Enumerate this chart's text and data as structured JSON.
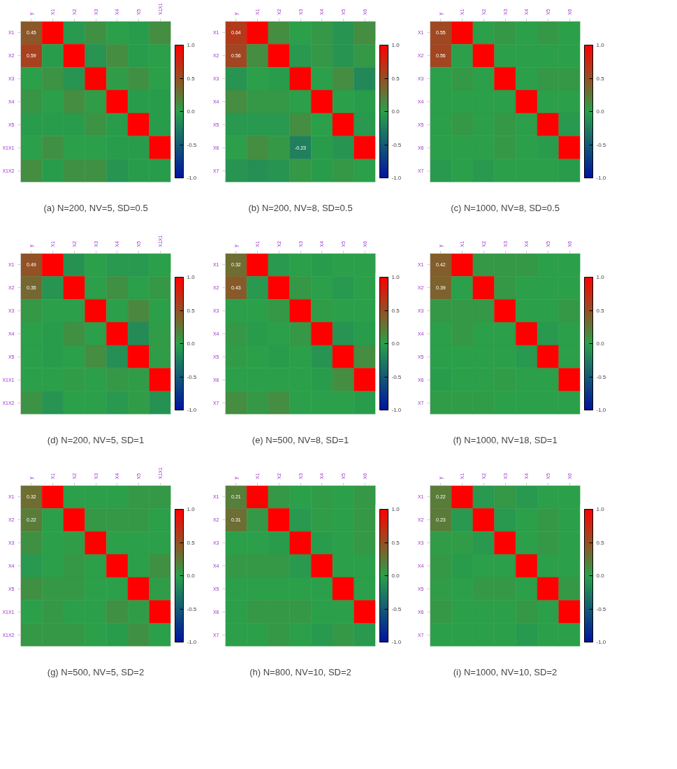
{
  "chart_data": [
    {
      "type": "heatmap",
      "title": "(a) N=200, NV=5, SD=0.5",
      "categories": [
        "y",
        "X1",
        "X2",
        "X3",
        "X4",
        "X5",
        "X1X1"
      ],
      "y_categories": [
        "X1",
        "X2",
        "X3",
        "X4",
        "X5",
        "X1X1",
        "X1X2"
      ],
      "cells": [
        [
          0.45,
          1,
          -0.05,
          0.1,
          0,
          -0.03,
          0.12
        ],
        [
          0.59,
          -0.03,
          1,
          -0.08,
          0.12,
          -0.03,
          0
        ],
        [
          0,
          0.08,
          -0.08,
          1,
          0.03,
          0.1,
          0
        ],
        [
          0.07,
          0,
          0.12,
          0.03,
          1,
          -0.03,
          -0.03
        ],
        [
          -0.03,
          -0.03,
          -0.03,
          0.08,
          -0.03,
          1,
          -0.03
        ],
        [
          0,
          0.1,
          0,
          0,
          -0.03,
          -0.03,
          1
        ],
        [
          0.12,
          -0.03,
          0.1,
          0.1,
          -0.08,
          -0.03,
          -0.03
        ]
      ],
      "cell_labels": [
        [
          "0.45",
          null,
          null,
          null,
          null,
          null,
          null
        ],
        [
          "0.59",
          null,
          null,
          null,
          null,
          null,
          null
        ],
        [
          null,
          null,
          null,
          null,
          null,
          null,
          null
        ],
        [
          null,
          null,
          null,
          null,
          null,
          null,
          null
        ],
        [
          null,
          null,
          null,
          null,
          null,
          null,
          null
        ],
        [
          null,
          null,
          null,
          null,
          null,
          null,
          null
        ],
        [
          null,
          null,
          null,
          null,
          null,
          null,
          null
        ]
      ],
      "clim": [
        -1,
        1
      ],
      "cticks": [
        {
          "value": -1,
          "label": "-1.0"
        },
        {
          "value": -0.5,
          "label": "-0.5"
        },
        {
          "value": 0,
          "label": "0.0"
        },
        {
          "value": 0.5,
          "label": "0.5"
        },
        {
          "value": 1,
          "label": "1.0"
        }
      ]
    },
    {
      "type": "heatmap",
      "title": "(b) N=200, NV=8, SD=0.5",
      "categories": [
        "y",
        "X1",
        "X2",
        "X3",
        "X4",
        "X5",
        "X6"
      ],
      "y_categories": [
        "X1",
        "X2",
        "X3",
        "X4",
        "X5",
        "X6",
        "X7"
      ],
      "cells": [
        [
          0.64,
          1,
          0.12,
          0,
          0.05,
          -0.08,
          0.12
        ],
        [
          0.56,
          0.12,
          1,
          -0.05,
          0.05,
          -0.08,
          0.05
        ],
        [
          -0.08,
          0,
          -0.03,
          1,
          0,
          0.12,
          -0.17
        ],
        [
          0.12,
          0.05,
          0.05,
          0,
          1,
          0,
          -0.03
        ],
        [
          -0.05,
          -0.05,
          -0.05,
          0.12,
          0,
          1,
          -0.05
        ],
        [
          0,
          0.12,
          0.05,
          -0.23,
          -0.03,
          -0.08,
          1
        ],
        [
          -0.08,
          -0.12,
          -0.08,
          0.05,
          -0.03,
          0.05,
          0
        ]
      ],
      "cell_labels": [
        [
          "0.64",
          null,
          null,
          null,
          null,
          null,
          null
        ],
        [
          "0.56",
          null,
          null,
          null,
          null,
          null,
          null
        ],
        [
          null,
          null,
          null,
          null,
          null,
          null,
          null
        ],
        [
          null,
          null,
          null,
          null,
          null,
          null,
          null
        ],
        [
          null,
          null,
          null,
          null,
          null,
          null,
          null
        ],
        [
          null,
          null,
          null,
          "-0.23",
          null,
          null,
          null
        ],
        [
          null,
          null,
          null,
          null,
          null,
          null,
          null
        ]
      ],
      "clim": [
        -1,
        1
      ],
      "cticks": [
        {
          "value": -1,
          "label": "-1.0"
        },
        {
          "value": -0.5,
          "label": "-0.5"
        },
        {
          "value": 0,
          "label": "0.0"
        },
        {
          "value": 0.5,
          "label": "0.5"
        },
        {
          "value": 1,
          "label": "1.0"
        }
      ]
    },
    {
      "type": "heatmap",
      "title": "(c) N=1000, NV=8, SD=0.5",
      "categories": [
        "y",
        "X1",
        "X2",
        "X3",
        "X4",
        "X5",
        "X6"
      ],
      "y_categories": [
        "X1",
        "X2",
        "X3",
        "X4",
        "X5",
        "X6",
        "X7"
      ],
      "cells": [
        [
          0.55,
          1,
          0,
          0.05,
          0,
          0.05,
          0
        ],
        [
          0.56,
          0,
          1,
          0,
          0,
          0,
          0
        ],
        [
          0,
          0.05,
          0,
          1,
          0,
          0.05,
          0.05
        ],
        [
          0,
          0,
          0,
          0,
          1,
          0,
          0
        ],
        [
          0,
          0.05,
          0,
          0.05,
          0,
          1,
          -0.05
        ],
        [
          0,
          0,
          0,
          0.05,
          0,
          -0.03,
          1
        ],
        [
          -0.05,
          0,
          -0.05,
          0,
          0,
          0,
          -0.03
        ]
      ],
      "cell_labels": [
        [
          "0.55",
          null,
          null,
          null,
          null,
          null,
          null
        ],
        [
          "0.56",
          null,
          null,
          null,
          null,
          null,
          null
        ],
        [
          null,
          null,
          null,
          null,
          null,
          null,
          null
        ],
        [
          null,
          null,
          null,
          null,
          null,
          null,
          null
        ],
        [
          null,
          null,
          null,
          null,
          null,
          null,
          null
        ],
        [
          null,
          null,
          null,
          null,
          null,
          null,
          null
        ],
        [
          null,
          null,
          null,
          null,
          null,
          null,
          null
        ]
      ],
      "clim": [
        -1,
        1
      ],
      "cticks": [
        {
          "value": -1,
          "label": "-1.0"
        },
        {
          "value": -0.5,
          "label": "-0.5"
        },
        {
          "value": 0,
          "label": "0.0"
        },
        {
          "value": 0.5,
          "label": "0.5"
        },
        {
          "value": 1,
          "label": "1.0"
        }
      ]
    },
    {
      "type": "heatmap",
      "title": "(d) N=200, NV=5, SD=1",
      "categories": [
        "y",
        "X1",
        "X2",
        "X3",
        "X4",
        "X5",
        "X1X1"
      ],
      "y_categories": [
        "X1",
        "X2",
        "X3",
        "X4",
        "X5",
        "X1X1",
        "X1X2"
      ],
      "cells": [
        [
          0.49,
          1,
          -0.1,
          0,
          -0.05,
          -0.05,
          0
        ],
        [
          0.35,
          -0.08,
          1,
          0,
          0.1,
          0,
          0.05
        ],
        [
          0.05,
          0,
          0,
          1,
          0,
          0.15,
          0
        ],
        [
          0,
          -0.03,
          0.1,
          0,
          1,
          -0.15,
          0.03
        ],
        [
          0,
          -0.03,
          0,
          0.12,
          -0.12,
          1,
          0.03
        ],
        [
          0,
          0,
          0.03,
          0,
          0.05,
          0.03,
          1
        ],
        [
          0.08,
          -0.08,
          0,
          0,
          -0.05,
          0.03,
          -0.1
        ]
      ],
      "cell_labels": [
        [
          "0.49",
          null,
          null,
          null,
          null,
          null,
          null
        ],
        [
          "0.35",
          null,
          null,
          null,
          null,
          null,
          null
        ],
        [
          null,
          null,
          null,
          null,
          null,
          null,
          null
        ],
        [
          null,
          null,
          null,
          null,
          null,
          null,
          null
        ],
        [
          null,
          null,
          null,
          null,
          null,
          null,
          null
        ],
        [
          null,
          null,
          null,
          null,
          null,
          null,
          null
        ],
        [
          null,
          null,
          null,
          null,
          null,
          null,
          null
        ]
      ],
      "clim": [
        -1,
        1
      ],
      "cticks": [
        {
          "value": -1,
          "label": "-1.0"
        },
        {
          "value": -0.5,
          "label": "-0.5"
        },
        {
          "value": 0,
          "label": "0.0"
        },
        {
          "value": 0.5,
          "label": "0.5"
        },
        {
          "value": 1,
          "label": "1.0"
        }
      ]
    },
    {
      "type": "heatmap",
      "title": "(e) N=500, NV=8, SD=1",
      "categories": [
        "y",
        "X1",
        "X2",
        "X3",
        "X4",
        "X5",
        "X6"
      ],
      "y_categories": [
        "X1",
        "X2",
        "X3",
        "X4",
        "X5",
        "X6",
        "X7"
      ],
      "cells": [
        [
          0.32,
          1,
          -0.05,
          0,
          -0.03,
          0,
          0
        ],
        [
          0.43,
          -0.05,
          1,
          0.05,
          0,
          -0.05,
          0
        ],
        [
          0,
          0,
          0.05,
          1,
          0.03,
          0,
          0
        ],
        [
          0.05,
          -0.03,
          0,
          0.05,
          1,
          -0.08,
          -0.03
        ],
        [
          0.03,
          0,
          -0.03,
          0,
          -0.08,
          1,
          0.12
        ],
        [
          0,
          0,
          0,
          0,
          -0.03,
          0.12,
          1
        ],
        [
          0.12,
          0.05,
          0.12,
          0,
          0,
          0,
          -0.03
        ]
      ],
      "cell_labels": [
        [
          "0.32",
          null,
          null,
          null,
          null,
          null,
          null
        ],
        [
          "0.43",
          null,
          null,
          null,
          null,
          null,
          null
        ],
        [
          null,
          null,
          null,
          null,
          null,
          null,
          null
        ],
        [
          null,
          null,
          null,
          null,
          null,
          null,
          null
        ],
        [
          null,
          null,
          null,
          null,
          null,
          null,
          null
        ],
        [
          null,
          null,
          null,
          null,
          null,
          null,
          null
        ],
        [
          null,
          null,
          null,
          null,
          null,
          null,
          null
        ]
      ],
      "clim": [
        -1,
        1
      ],
      "cticks": [
        {
          "value": -1,
          "label": "-1.0"
        },
        {
          "value": -0.5,
          "label": "-0.5"
        },
        {
          "value": 0,
          "label": "0.0"
        },
        {
          "value": 0.5,
          "label": "0.5"
        },
        {
          "value": 1,
          "label": "1.0"
        }
      ]
    },
    {
      "type": "heatmap",
      "title": "(f) N=1000, NV=18, SD=1",
      "categories": [
        "y",
        "X1",
        "X2",
        "X3",
        "X4",
        "X5",
        "X6"
      ],
      "y_categories": [
        "X1",
        "X2",
        "X3",
        "X4",
        "X5",
        "X6",
        "X7"
      ],
      "cells": [
        [
          0.42,
          1,
          0.05,
          0.05,
          0.05,
          0,
          0
        ],
        [
          0.39,
          0,
          1,
          0.05,
          0,
          0,
          0
        ],
        [
          0.05,
          0.05,
          0.05,
          1,
          0,
          0,
          0.05
        ],
        [
          0,
          0.05,
          0,
          0,
          1,
          -0.05,
          0
        ],
        [
          0,
          0,
          0,
          0,
          -0.05,
          1,
          0
        ],
        [
          -0.03,
          0,
          0,
          0.03,
          0,
          0,
          1
        ],
        [
          0.03,
          0.03,
          0.03,
          0,
          0,
          0,
          0
        ]
      ],
      "cell_labels": [
        [
          "0.42",
          null,
          null,
          null,
          null,
          null,
          null
        ],
        [
          "0.39",
          null,
          null,
          null,
          null,
          null,
          null
        ],
        [
          null,
          null,
          null,
          null,
          null,
          null,
          null
        ],
        [
          null,
          null,
          null,
          null,
          null,
          null,
          null
        ],
        [
          null,
          null,
          null,
          null,
          null,
          null,
          null
        ],
        [
          null,
          null,
          null,
          null,
          null,
          null,
          null
        ],
        [
          null,
          null,
          null,
          null,
          null,
          null,
          null
        ]
      ],
      "clim": [
        -1,
        1
      ],
      "cticks": [
        {
          "value": -1,
          "label": "-1.0"
        },
        {
          "value": -0.5,
          "label": "-0.5"
        },
        {
          "value": 0,
          "label": "0.0"
        },
        {
          "value": 0.5,
          "label": "0.5"
        },
        {
          "value": 1,
          "label": "1.0"
        }
      ]
    },
    {
      "type": "heatmap",
      "title": "(g) N=500, NV=5, SD=2",
      "categories": [
        "y",
        "X1",
        "X2",
        "X3",
        "X4",
        "X5",
        "X1X1"
      ],
      "y_categories": [
        "X1",
        "X2",
        "X3",
        "X4",
        "X5",
        "X1X1",
        "X1X2"
      ],
      "cells": [
        [
          0.32,
          1,
          0,
          0,
          0,
          0.05,
          0.05
        ],
        [
          0.22,
          0,
          1,
          0.05,
          0.05,
          0.05,
          0
        ],
        [
          0.1,
          0,
          0.03,
          1,
          0,
          0,
          0
        ],
        [
          -0.05,
          0,
          0.05,
          0,
          1,
          0,
          0.1
        ],
        [
          0.1,
          0.05,
          0.05,
          0,
          0,
          1,
          0.03
        ],
        [
          0,
          0.05,
          0,
          0,
          0.1,
          0.03,
          1
        ],
        [
          0.05,
          0.05,
          0.05,
          0,
          -0.03,
          0.1,
          0
        ]
      ],
      "cell_labels": [
        [
          "0.32",
          null,
          null,
          null,
          null,
          null,
          null
        ],
        [
          "0.22",
          null,
          null,
          null,
          null,
          null,
          null
        ],
        [
          null,
          null,
          null,
          null,
          null,
          null,
          null
        ],
        [
          null,
          null,
          null,
          null,
          null,
          null,
          null
        ],
        [
          null,
          null,
          null,
          null,
          null,
          null,
          null
        ],
        [
          null,
          null,
          null,
          null,
          null,
          null,
          null
        ],
        [
          null,
          null,
          null,
          null,
          null,
          null,
          null
        ]
      ],
      "clim": [
        -1,
        1
      ],
      "cticks": [
        {
          "value": -1,
          "label": "-1.0"
        },
        {
          "value": -0.5,
          "label": "-0.5"
        },
        {
          "value": 0,
          "label": "0.0"
        },
        {
          "value": 0.5,
          "label": "0.5"
        },
        {
          "value": 1,
          "label": "1.0"
        }
      ]
    },
    {
      "type": "heatmap",
      "title": "(h) N=800, NV=10, SD=2",
      "categories": [
        "y",
        "X1",
        "X2",
        "X3",
        "X4",
        "X5",
        "X6"
      ],
      "y_categories": [
        "X1",
        "X2",
        "X3",
        "X4",
        "X5",
        "X6",
        "X7"
      ],
      "cells": [
        [
          0.21,
          1,
          0.05,
          0,
          0.03,
          0,
          0.05
        ],
        [
          0.31,
          0.05,
          1,
          -0.05,
          0.03,
          0,
          0.05
        ],
        [
          0,
          0,
          -0.03,
          1,
          -0.03,
          0,
          0.05
        ],
        [
          0.05,
          0.05,
          0.05,
          -0.05,
          1,
          0,
          0
        ],
        [
          0,
          0,
          0,
          0,
          0,
          1,
          0
        ],
        [
          0,
          0.05,
          0.05,
          0.05,
          0,
          0,
          1
        ],
        [
          0,
          0,
          0.05,
          0,
          -0.05,
          0.05,
          -0.05
        ]
      ],
      "cell_labels": [
        [
          "0.21",
          null,
          null,
          null,
          null,
          null,
          null
        ],
        [
          "0.31",
          null,
          null,
          null,
          null,
          null,
          null
        ],
        [
          null,
          null,
          null,
          null,
          null,
          null,
          null
        ],
        [
          null,
          null,
          null,
          null,
          null,
          null,
          null
        ],
        [
          null,
          null,
          null,
          null,
          null,
          null,
          null
        ],
        [
          null,
          null,
          null,
          null,
          null,
          null,
          null
        ],
        [
          null,
          null,
          null,
          null,
          null,
          null,
          null
        ]
      ],
      "clim": [
        -1,
        1
      ],
      "cticks": [
        {
          "value": -1,
          "label": "-1.0"
        },
        {
          "value": -0.5,
          "label": "-0.5"
        },
        {
          "value": 0,
          "label": "0.0"
        },
        {
          "value": 0.5,
          "label": "0.5"
        },
        {
          "value": 1,
          "label": "1.0"
        }
      ]
    },
    {
      "type": "heatmap",
      "title": "(i) N=1000, NV=10, SD=2",
      "categories": [
        "y",
        "X1",
        "X2",
        "X3",
        "X4",
        "X5",
        "X6"
      ],
      "y_categories": [
        "X1",
        "X2",
        "X3",
        "X4",
        "X5",
        "X6",
        "X7"
      ],
      "cells": [
        [
          0.22,
          1,
          -0.05,
          0.05,
          -0.05,
          0,
          0
        ],
        [
          0.23,
          -0.05,
          1,
          -0.05,
          0,
          0.05,
          0
        ],
        [
          0.03,
          0.03,
          -0.05,
          1,
          0,
          0.05,
          0
        ],
        [
          0.05,
          -0.03,
          0,
          0,
          1,
          0,
          0
        ],
        [
          0.03,
          0,
          0.05,
          0.05,
          0,
          1,
          0.05
        ],
        [
          0.05,
          0,
          0,
          0,
          0.05,
          0,
          1
        ],
        [
          0,
          0,
          0,
          0,
          -0.05,
          0,
          0
        ]
      ],
      "cell_labels": [
        [
          "0.22",
          null,
          null,
          null,
          null,
          null,
          null
        ],
        [
          "0.23",
          null,
          null,
          null,
          null,
          null,
          null
        ],
        [
          null,
          null,
          null,
          null,
          null,
          null,
          null
        ],
        [
          null,
          null,
          null,
          null,
          null,
          null,
          null
        ],
        [
          null,
          null,
          null,
          null,
          null,
          null,
          null
        ],
        [
          null,
          null,
          null,
          null,
          null,
          null,
          null
        ],
        [
          null,
          null,
          null,
          null,
          null,
          null,
          null
        ]
      ],
      "clim": [
        -1,
        1
      ],
      "cticks": [
        {
          "value": -1,
          "label": "-1.0"
        },
        {
          "value": -0.5,
          "label": "-0.5"
        },
        {
          "value": 0,
          "label": "0.0"
        },
        {
          "value": 0.5,
          "label": "0.5"
        },
        {
          "value": 1,
          "label": "1.0"
        }
      ]
    }
  ]
}
